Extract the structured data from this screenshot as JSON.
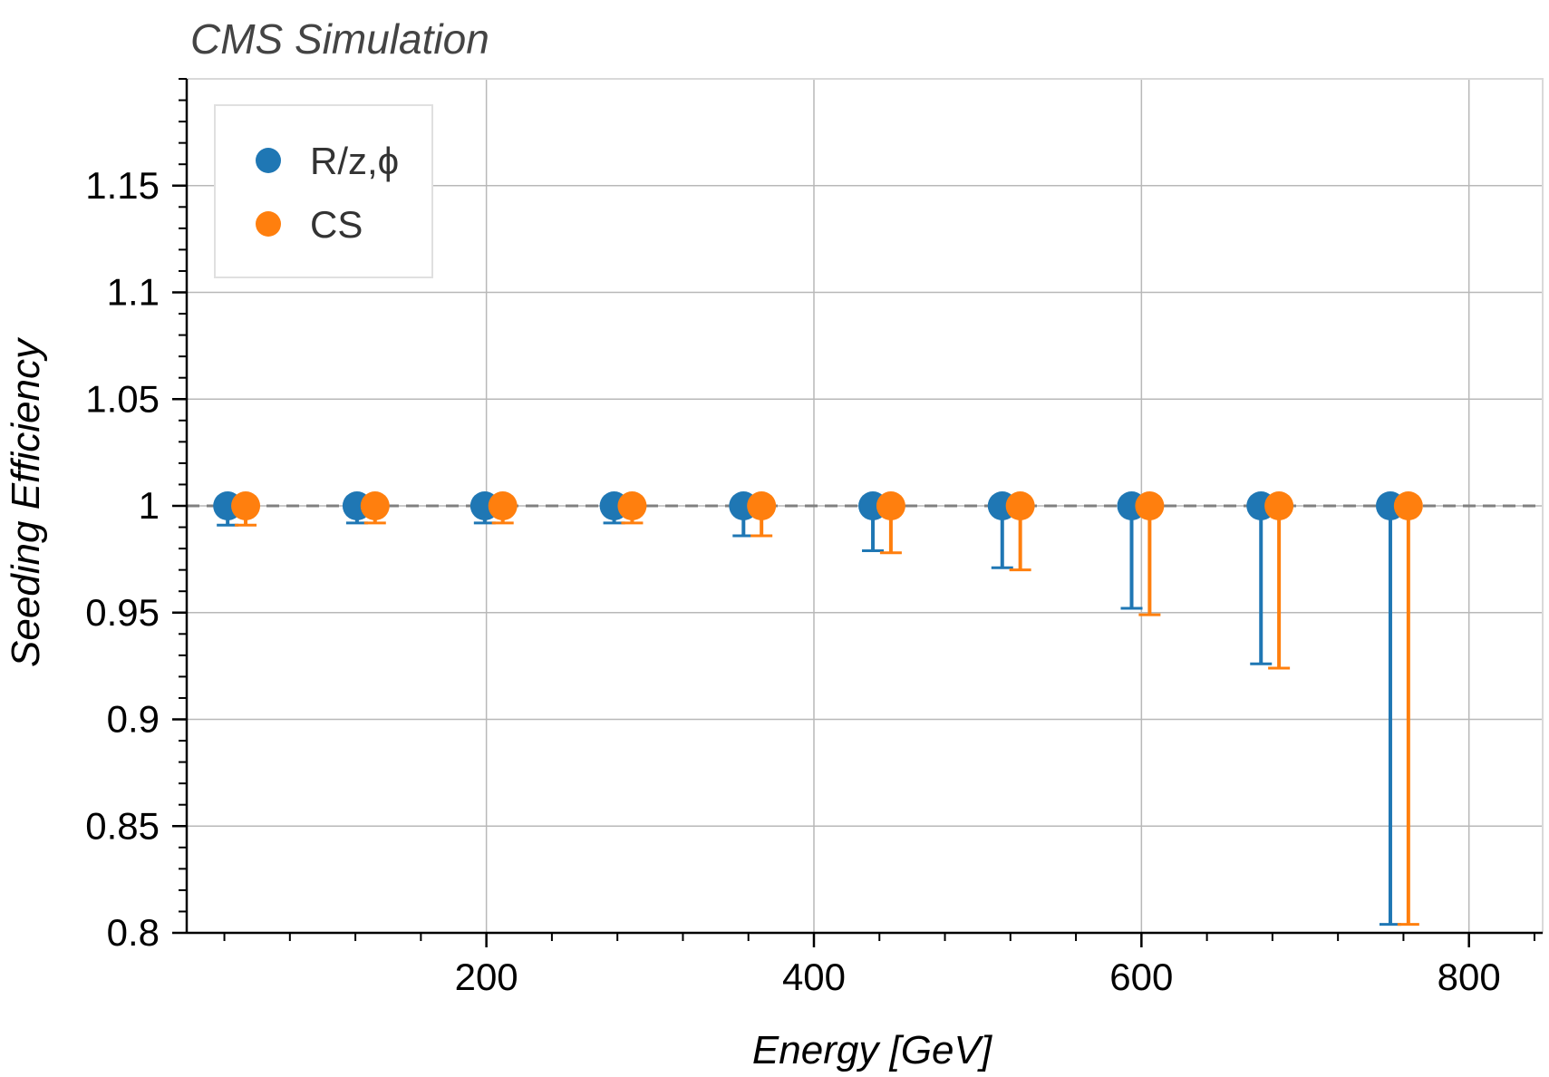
{
  "chart_data": {
    "type": "scatter",
    "title": "CMS Simulation",
    "xlabel": "Energy [GeV]",
    "ylabel": "Seeding Efficiency",
    "xlim": [
      17,
      845
    ],
    "ylim": [
      0.8,
      1.2
    ],
    "x_ticks": [
      200,
      400,
      600,
      800
    ],
    "x_tick_labels": [
      "200",
      "400",
      "600",
      "800"
    ],
    "y_ticks": [
      0.8,
      0.85,
      0.9,
      0.95,
      1.0,
      1.05,
      1.1,
      1.15
    ],
    "y_tick_labels": [
      "0.8",
      "0.85",
      "0.9",
      "0.95",
      "1",
      "1.05",
      "1.1",
      "1.15"
    ],
    "grid": true,
    "reference_line": {
      "y": 1.0,
      "style": "dashed"
    },
    "legend_position": "top-left",
    "series": [
      {
        "name": "R/z,ϕ",
        "color": "#1f77b4",
        "x": [
          42,
          121,
          199,
          278,
          357,
          436,
          515,
          594,
          673,
          752
        ],
        "y": [
          1,
          1,
          1,
          1,
          1,
          1,
          1,
          1,
          1,
          1
        ],
        "err_low": [
          0.009,
          0.008,
          0.008,
          0.008,
          0.014,
          0.021,
          0.029,
          0.048,
          0.074,
          0.196
        ],
        "err_high": [
          0,
          0,
          0,
          0,
          0,
          0,
          0,
          0,
          0,
          0
        ]
      },
      {
        "name": "CS",
        "color": "#ff7f0e",
        "x": [
          53,
          132,
          210,
          289,
          368,
          447,
          526,
          605,
          684,
          763
        ],
        "y": [
          1,
          1,
          1,
          1,
          1,
          1,
          1,
          1,
          1,
          1
        ],
        "err_low": [
          0.009,
          0.008,
          0.008,
          0.008,
          0.014,
          0.022,
          0.03,
          0.051,
          0.076,
          0.196
        ],
        "err_high": [
          0,
          0,
          0,
          0,
          0,
          0,
          0,
          0,
          0,
          0
        ]
      }
    ]
  }
}
